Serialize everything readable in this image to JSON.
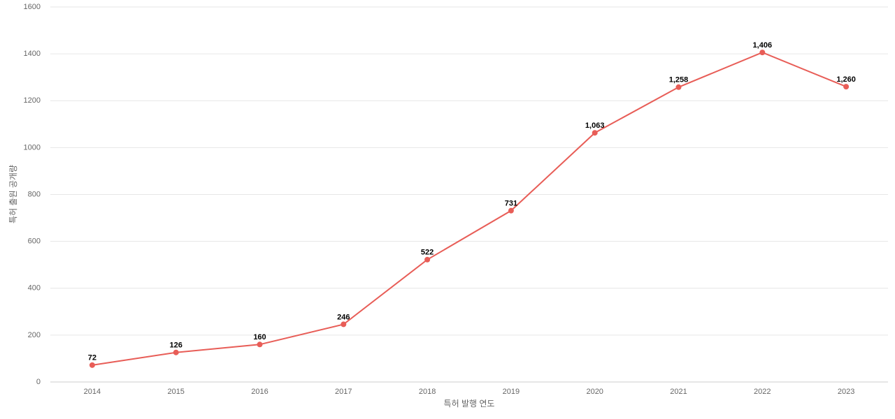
{
  "chart_data": {
    "type": "line",
    "x_label": "특허 발행 연도",
    "y_label": "특허 출원 공개량",
    "categories": [
      "2014",
      "2015",
      "2016",
      "2017",
      "2018",
      "2019",
      "2020",
      "2021",
      "2022",
      "2023"
    ],
    "values": [
      72,
      126,
      160,
      246,
      522,
      731,
      1063,
      1258,
      1406,
      1260
    ],
    "value_labels": [
      "72",
      "126",
      "160",
      "246",
      "522",
      "731",
      "1,063",
      "1,258",
      "1,406",
      "1,260"
    ],
    "color": "#e85d57",
    "ylim": [
      0,
      1600
    ],
    "yticks": [
      0,
      200,
      400,
      600,
      800,
      1000,
      1200,
      1400,
      1600
    ],
    "grid": true
  }
}
